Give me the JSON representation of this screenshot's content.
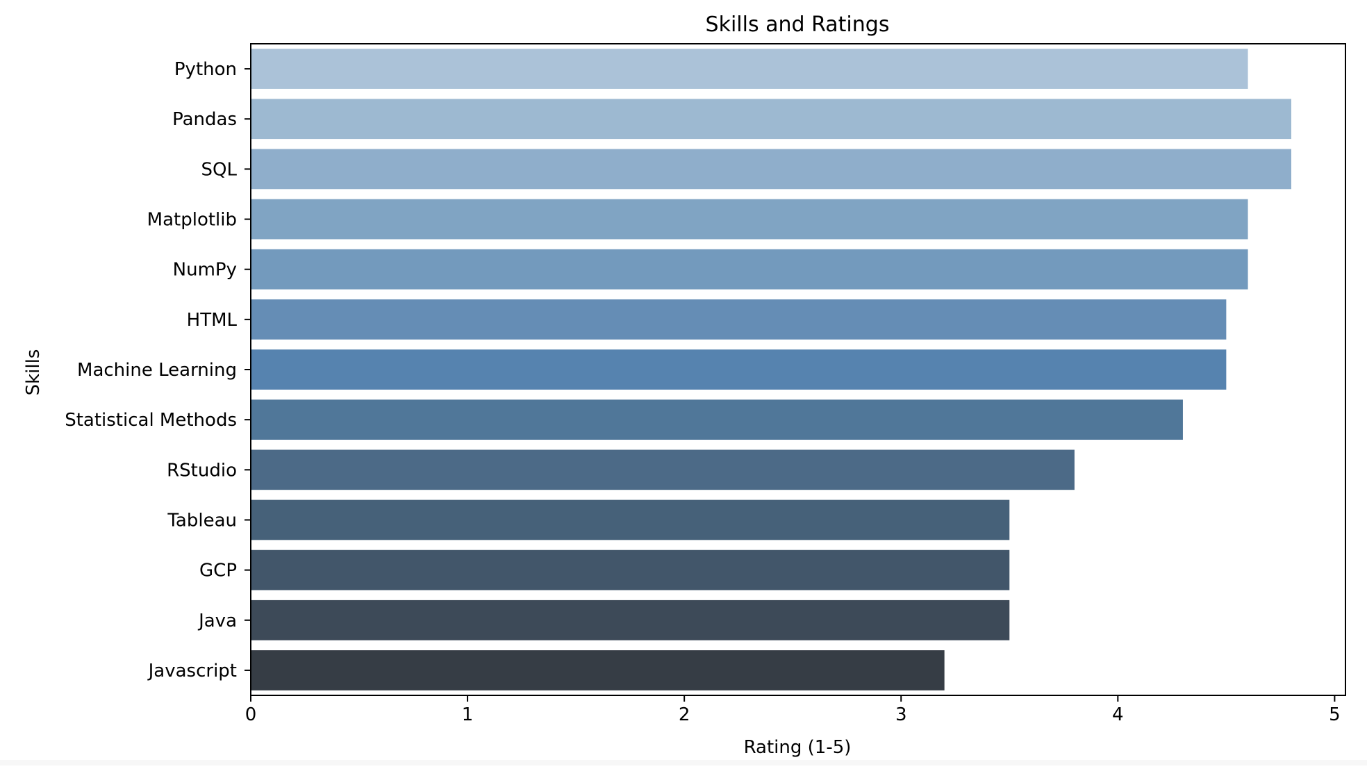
{
  "chart_data": {
    "type": "bar",
    "orientation": "horizontal",
    "title": "Skills and Ratings",
    "xlabel": "Rating (1-5)",
    "ylabel": "Skills",
    "xlim": [
      0,
      5.05
    ],
    "xticks": [
      "0",
      "1",
      "2",
      "3",
      "4",
      "5"
    ],
    "grid": false,
    "categories": [
      "Python",
      "Pandas",
      "SQL",
      "Matplotlib",
      "NumPy",
      "HTML",
      "Machine Learning",
      "Statistical Methods",
      "RStudio",
      "Tableau",
      "GCP",
      "Java",
      "Javascript"
    ],
    "values": [
      4.6,
      4.8,
      4.8,
      4.6,
      4.6,
      4.5,
      4.5,
      4.3,
      3.8,
      3.5,
      3.5,
      3.5,
      3.2
    ],
    "colors": [
      "#abc2d8",
      "#9db9d1",
      "#8faecb",
      "#80a4c3",
      "#739abd",
      "#658db5",
      "#5683af",
      "#507799",
      "#4c6a87",
      "#466179",
      "#42566a",
      "#3d4a58",
      "#363d45"
    ]
  }
}
